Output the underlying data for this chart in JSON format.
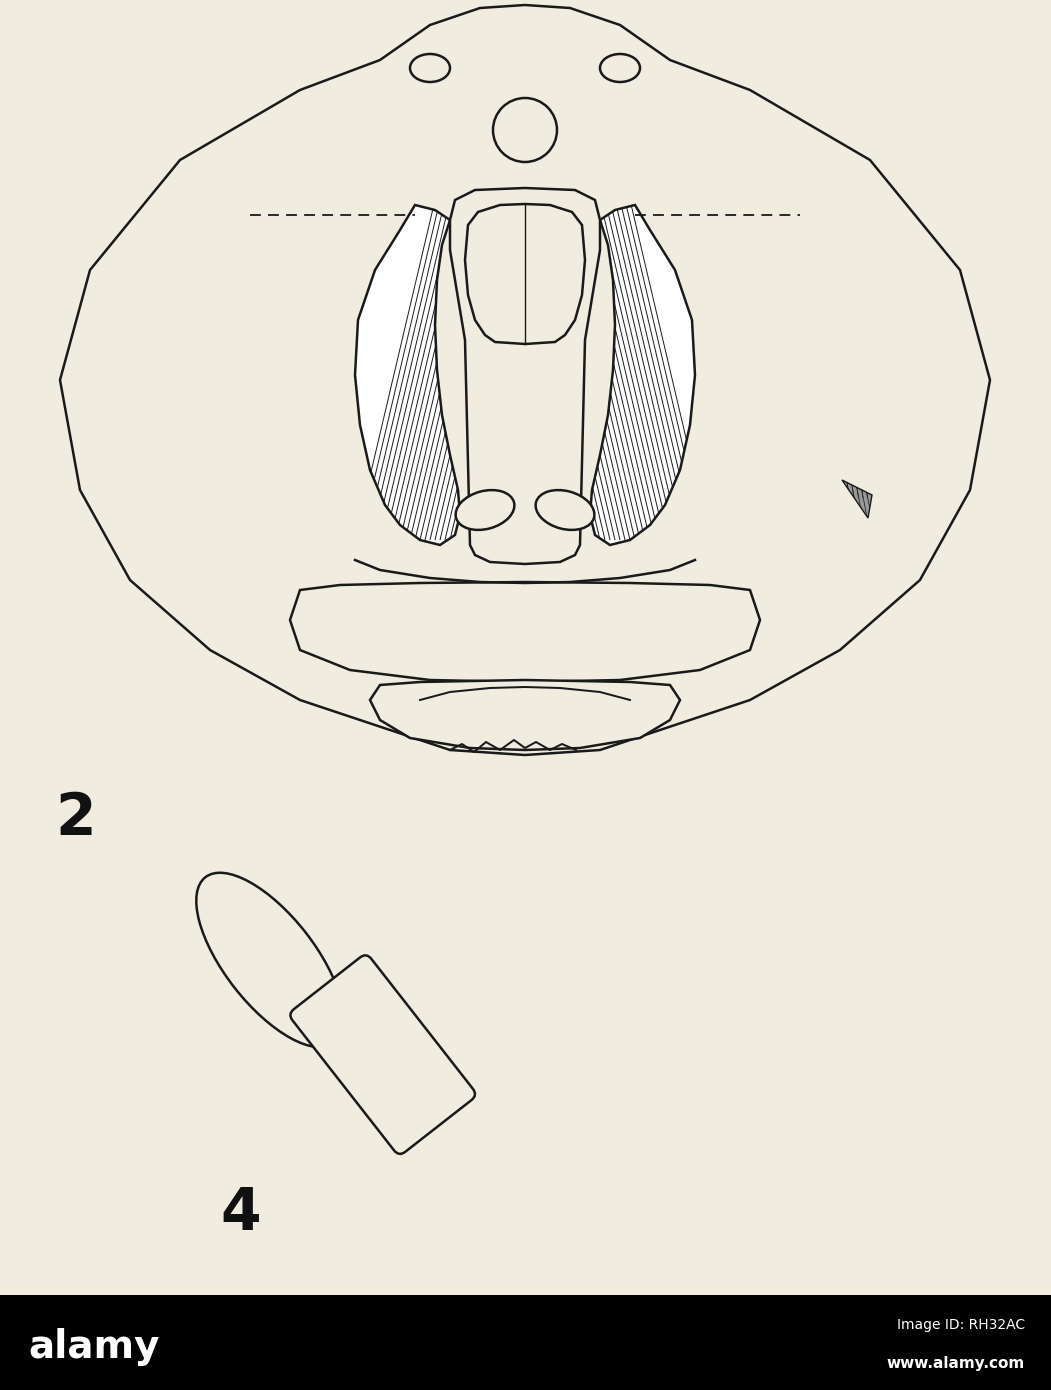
{
  "bg_color": "#f0ece0",
  "line_color": "#1a1a1a",
  "black_bar_color": "#000000",
  "white_color": "#ffffff",
  "label_2": "2",
  "label_4": "4",
  "alamy_text": "alamy",
  "image_id_text": "Image ID: RH32AC",
  "website_text": "www.alamy.com",
  "fig_width": 10.51,
  "fig_height": 13.9,
  "dpi": 100
}
